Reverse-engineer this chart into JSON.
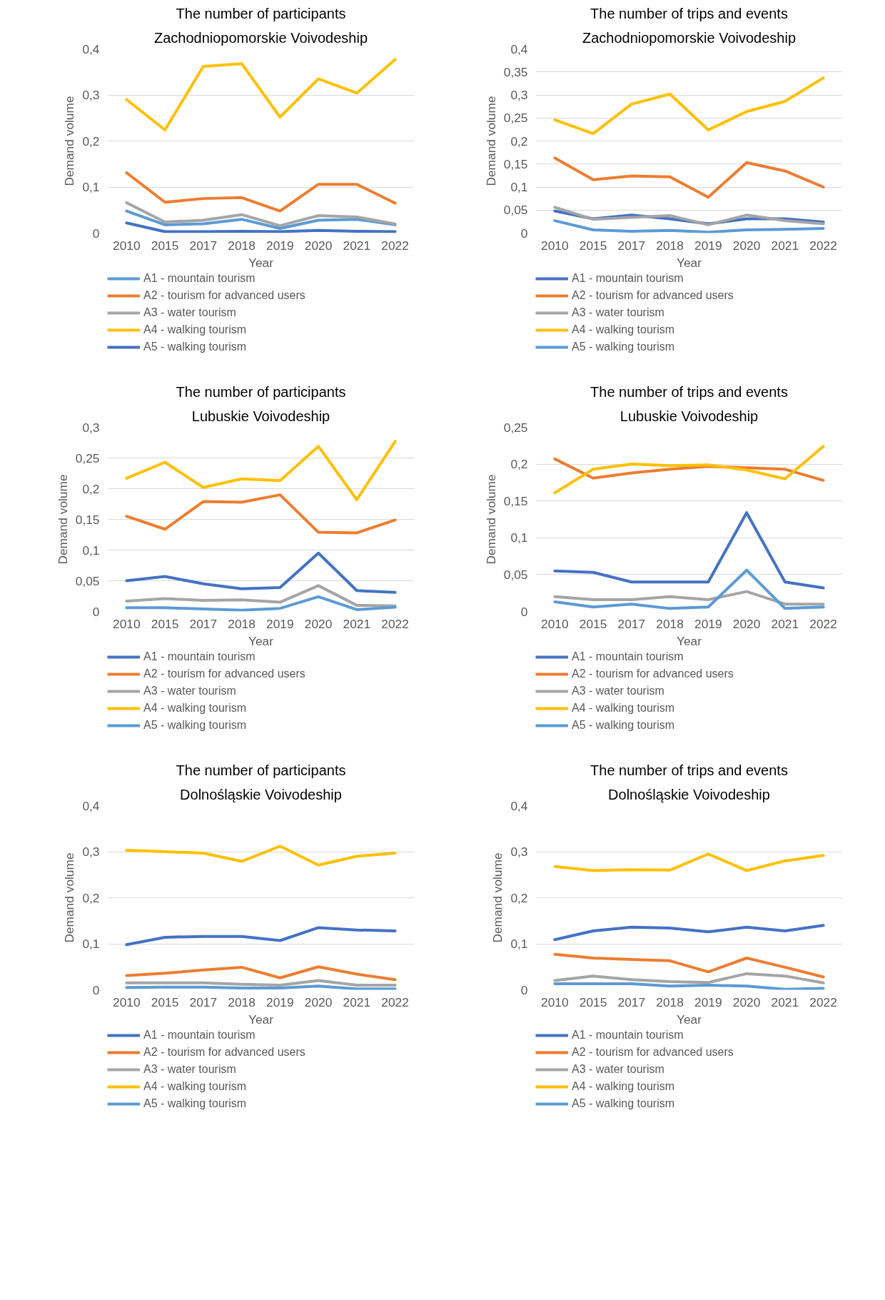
{
  "chart_data": [
    {
      "type": "line",
      "title": "The number of participants",
      "subtitle": "Zachodniopomorskie Voivodeship",
      "xlabel": "Year",
      "ylabel": "Demand volume",
      "categories": [
        "2010",
        "2015",
        "2017",
        "2018",
        "2019",
        "2020",
        "2021",
        "2022"
      ],
      "ylim": [
        0,
        0.4
      ],
      "yticks": [
        {
          "value": 0,
          "label": "0"
        },
        {
          "value": 0.1,
          "label": "0,1"
        },
        {
          "value": 0.2,
          "label": "0,2"
        },
        {
          "value": 0.3,
          "label": "0,3"
        },
        {
          "value": 0.4,
          "label": "0,4"
        }
      ],
      "grid": "y",
      "legend": "bottom",
      "series": [
        {
          "name": "A1 - mountain tourism",
          "color": "#5b9bd5",
          "values": [
            0.048,
            0.018,
            0.02,
            0.03,
            0.01,
            0.028,
            0.03,
            0.018
          ]
        },
        {
          "name": "A2 - tourism for advanced users",
          "color": "#ed7d31",
          "values": [
            0.131,
            0.067,
            0.075,
            0.077,
            0.048,
            0.106,
            0.106,
            0.065
          ]
        },
        {
          "name": "A3 - water tourism",
          "color": "#a5a5a5",
          "values": [
            0.066,
            0.024,
            0.028,
            0.04,
            0.016,
            0.038,
            0.035,
            0.02
          ]
        },
        {
          "name": "A4 - walking tourism",
          "color": "#ffc000",
          "values": [
            0.29,
            0.224,
            0.362,
            0.368,
            0.252,
            0.335,
            0.304,
            0.377
          ]
        },
        {
          "name": "A5 - walking tourism",
          "color": "#4472c4",
          "values": [
            0.022,
            0.003,
            0.003,
            0.004,
            0.003,
            0.006,
            0.004,
            0.003
          ]
        }
      ]
    },
    {
      "type": "line",
      "title": "The number of trips and events",
      "subtitle": "Zachodniopomorskie Voivodeship",
      "xlabel": "Year",
      "ylabel": "Demand volume",
      "categories": [
        "2010",
        "2015",
        "2017",
        "2018",
        "2019",
        "2020",
        "2021",
        "2022"
      ],
      "ylim": [
        0,
        0.4
      ],
      "yticks": [
        {
          "value": 0,
          "label": "0"
        },
        {
          "value": 0.05,
          "label": "0,05"
        },
        {
          "value": 0.1,
          "label": "0,1"
        },
        {
          "value": 0.15,
          "label": "0,15"
        },
        {
          "value": 0.2,
          "label": "0,2"
        },
        {
          "value": 0.25,
          "label": "0,25"
        },
        {
          "value": 0.3,
          "label": "0,3"
        },
        {
          "value": 0.35,
          "label": "0,35"
        },
        {
          "value": 0.4,
          "label": "0,4"
        }
      ],
      "grid": "y",
      "legend": "bottom",
      "series": [
        {
          "name": "A1 - mountain tourism",
          "color": "#4472c4",
          "values": [
            0.048,
            0.031,
            0.039,
            0.031,
            0.02,
            0.031,
            0.031,
            0.024
          ]
        },
        {
          "name": "A2 - tourism for advanced users",
          "color": "#ed7d31",
          "values": [
            0.163,
            0.116,
            0.124,
            0.122,
            0.078,
            0.153,
            0.135,
            0.1
          ]
        },
        {
          "name": "A3 - water tourism",
          "color": "#a5a5a5",
          "values": [
            0.056,
            0.03,
            0.034,
            0.038,
            0.018,
            0.039,
            0.027,
            0.02
          ]
        },
        {
          "name": "A4 - walking tourism",
          "color": "#ffc000",
          "values": [
            0.246,
            0.216,
            0.28,
            0.302,
            0.224,
            0.264,
            0.286,
            0.337
          ]
        },
        {
          "name": "A5 - walking tourism",
          "color": "#5b9bd5",
          "values": [
            0.027,
            0.007,
            0.004,
            0.006,
            0.002,
            0.007,
            0.008,
            0.01
          ]
        }
      ]
    },
    {
      "type": "line",
      "title": "The number of participants",
      "subtitle": "Lubuskie Voivodeship",
      "xlabel": "Year",
      "ylabel": "Demand volume",
      "categories": [
        "2010",
        "2015",
        "2017",
        "2018",
        "2019",
        "2020",
        "2021",
        "2022"
      ],
      "ylim": [
        0,
        0.3
      ],
      "yticks": [
        {
          "value": 0,
          "label": "0"
        },
        {
          "value": 0.05,
          "label": "0,05"
        },
        {
          "value": 0.1,
          "label": "0,1"
        },
        {
          "value": 0.15,
          "label": "0,15"
        },
        {
          "value": 0.2,
          "label": "0,2"
        },
        {
          "value": 0.25,
          "label": "0,25"
        },
        {
          "value": 0.3,
          "label": "0,3"
        }
      ],
      "grid": "y",
      "legend": "bottom",
      "series": [
        {
          "name": "A1 - mountain tourism",
          "color": "#4472c4",
          "values": [
            0.05,
            0.057,
            0.045,
            0.037,
            0.039,
            0.095,
            0.034,
            0.031
          ]
        },
        {
          "name": "A2 - tourism for advanced users",
          "color": "#ed7d31",
          "values": [
            0.155,
            0.134,
            0.179,
            0.178,
            0.19,
            0.129,
            0.128,
            0.149
          ]
        },
        {
          "name": "A3 - water tourism",
          "color": "#a5a5a5",
          "values": [
            0.017,
            0.021,
            0.018,
            0.019,
            0.015,
            0.042,
            0.01,
            0.009
          ]
        },
        {
          "name": "A4 - walking tourism",
          "color": "#ffc000",
          "values": [
            0.217,
            0.243,
            0.202,
            0.216,
            0.213,
            0.269,
            0.182,
            0.277
          ]
        },
        {
          "name": "A5 - walking tourism",
          "color": "#5b9bd5",
          "values": [
            0.006,
            0.006,
            0.004,
            0.002,
            0.005,
            0.024,
            0.003,
            0.007
          ]
        }
      ]
    },
    {
      "type": "line",
      "title": "The number of trips and events",
      "subtitle": "Lubuskie Voivodeship",
      "xlabel": "Year",
      "ylabel": "Demand volume",
      "categories": [
        "2010",
        "2015",
        "2017",
        "2018",
        "2019",
        "2020",
        "2021",
        "2022"
      ],
      "ylim": [
        0,
        0.25
      ],
      "yticks": [
        {
          "value": 0,
          "label": "0"
        },
        {
          "value": 0.05,
          "label": "0,05"
        },
        {
          "value": 0.1,
          "label": "0,1"
        },
        {
          "value": 0.15,
          "label": "0,15"
        },
        {
          "value": 0.2,
          "label": "0,2"
        },
        {
          "value": 0.25,
          "label": "0,25"
        }
      ],
      "grid": "y",
      "legend": "bottom",
      "series": [
        {
          "name": "A1 - mountain tourism",
          "color": "#4472c4",
          "values": [
            0.055,
            0.053,
            0.04,
            0.04,
            0.04,
            0.134,
            0.04,
            0.032
          ]
        },
        {
          "name": "A2 - tourism for advanced users",
          "color": "#ed7d31",
          "values": [
            0.207,
            0.181,
            0.188,
            0.193,
            0.197,
            0.195,
            0.193,
            0.178
          ]
        },
        {
          "name": "A3 - water tourism",
          "color": "#a5a5a5",
          "values": [
            0.02,
            0.016,
            0.016,
            0.02,
            0.016,
            0.027,
            0.01,
            0.01
          ]
        },
        {
          "name": "A4 - walking tourism",
          "color": "#ffc000",
          "values": [
            0.161,
            0.193,
            0.2,
            0.198,
            0.199,
            0.192,
            0.18,
            0.224
          ]
        },
        {
          "name": "A5 - walking tourism",
          "color": "#5b9bd5",
          "values": [
            0.013,
            0.006,
            0.01,
            0.004,
            0.006,
            0.056,
            0.004,
            0.006
          ]
        }
      ]
    },
    {
      "type": "line",
      "title": "The number of participants",
      "subtitle": "Dolnośląskie Voivodeship",
      "xlabel": "Year",
      "ylabel": "Demand volume",
      "categories": [
        "2010",
        "2015",
        "2017",
        "2018",
        "2019",
        "2020",
        "2021",
        "2022"
      ],
      "ylim": [
        0,
        0.4
      ],
      "yticks": [
        {
          "value": 0,
          "label": "0"
        },
        {
          "value": 0.1,
          "label": "0,1"
        },
        {
          "value": 0.2,
          "label": "0,2"
        },
        {
          "value": 0.3,
          "label": "0,3"
        },
        {
          "value": 0.4,
          "label": "0,4"
        }
      ],
      "grid": "y",
      "legend": "bottom",
      "series": [
        {
          "name": "A1 - mountain tourism",
          "color": "#4472c4",
          "values": [
            0.098,
            0.114,
            0.116,
            0.116,
            0.107,
            0.135,
            0.13,
            0.128
          ]
        },
        {
          "name": "A2 - tourism for advanced users",
          "color": "#ed7d31",
          "values": [
            0.031,
            0.036,
            0.043,
            0.049,
            0.026,
            0.05,
            0.034,
            0.022
          ]
        },
        {
          "name": "A3 - water tourism",
          "color": "#a5a5a5",
          "values": [
            0.015,
            0.015,
            0.015,
            0.012,
            0.01,
            0.02,
            0.01,
            0.01
          ]
        },
        {
          "name": "A4 - walking tourism",
          "color": "#ffc000",
          "values": [
            0.303,
            0.3,
            0.297,
            0.279,
            0.312,
            0.271,
            0.29,
            0.297
          ]
        },
        {
          "name": "A5 - walking tourism",
          "color": "#5b9bd5",
          "values": [
            0.005,
            0.006,
            0.006,
            0.004,
            0.004,
            0.008,
            0.002,
            0.002
          ]
        }
      ]
    },
    {
      "type": "line",
      "title": "The number of trips and events",
      "subtitle": "Dolnośląskie Voivodeship",
      "xlabel": "Year",
      "ylabel": "Demand volume",
      "categories": [
        "2010",
        "2015",
        "2017",
        "2018",
        "2019",
        "2020",
        "2021",
        "2022"
      ],
      "ylim": [
        0,
        0.4
      ],
      "yticks": [
        {
          "value": 0,
          "label": "0"
        },
        {
          "value": 0.1,
          "label": "0,1"
        },
        {
          "value": 0.2,
          "label": "0,2"
        },
        {
          "value": 0.3,
          "label": "0,3"
        },
        {
          "value": 0.4,
          "label": "0,4"
        }
      ],
      "grid": "y",
      "legend": "bottom",
      "series": [
        {
          "name": "A1 - mountain tourism",
          "color": "#4472c4",
          "values": [
            0.109,
            0.128,
            0.136,
            0.134,
            0.126,
            0.136,
            0.128,
            0.14
          ]
        },
        {
          "name": "A2 - tourism for advanced users",
          "color": "#ed7d31",
          "values": [
            0.077,
            0.069,
            0.066,
            0.063,
            0.039,
            0.069,
            0.049,
            0.028
          ]
        },
        {
          "name": "A3 - water tourism",
          "color": "#a5a5a5",
          "values": [
            0.02,
            0.03,
            0.022,
            0.018,
            0.016,
            0.035,
            0.03,
            0.015
          ]
        },
        {
          "name": "A4 - walking tourism",
          "color": "#ffc000",
          "values": [
            0.268,
            0.259,
            0.261,
            0.26,
            0.295,
            0.259,
            0.28,
            0.292
          ]
        },
        {
          "name": "A5 - walking tourism",
          "color": "#5b9bd5",
          "values": [
            0.013,
            0.013,
            0.013,
            0.008,
            0.01,
            0.008,
            0.001,
            0.003
          ]
        }
      ]
    }
  ]
}
